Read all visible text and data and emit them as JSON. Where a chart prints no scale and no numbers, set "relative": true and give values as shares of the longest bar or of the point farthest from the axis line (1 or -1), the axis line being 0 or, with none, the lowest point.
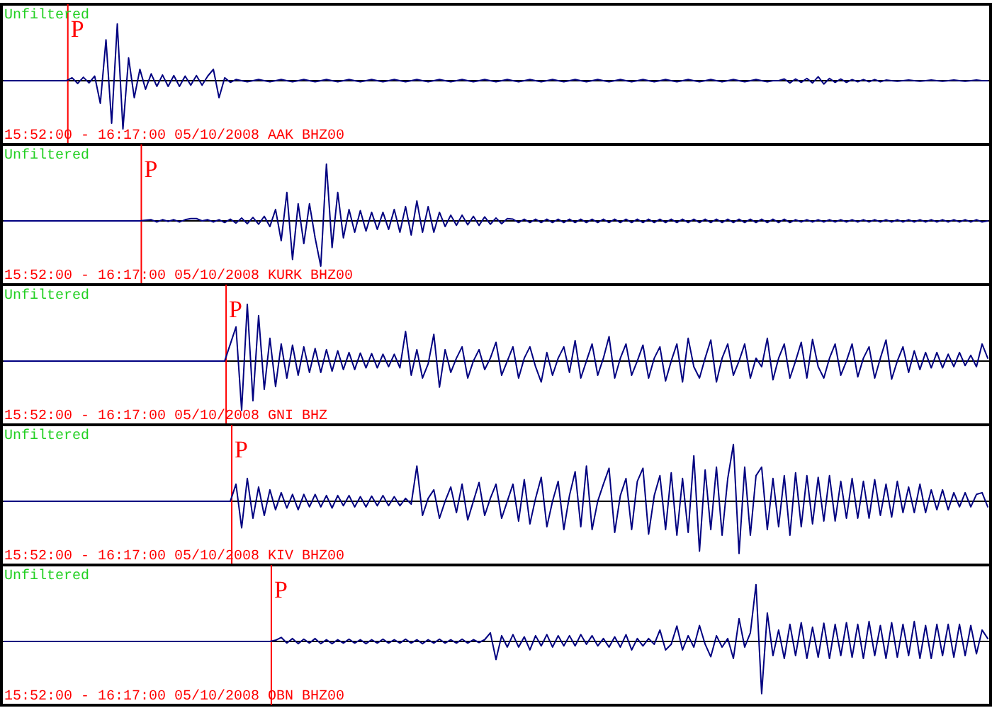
{
  "chart_data": [
    {
      "type": "line",
      "title": "Unfiltered",
      "annotations": [
        {
          "text": "P"
        },
        "15:52:00 - 16:17:00 05/10/2008 AAK BHZ00"
      ],
      "relative": true,
      "color": "#000080",
      "categories": [
        null,
        null,
        null,
        null,
        null,
        null,
        null,
        null,
        null,
        null,
        null,
        null,
        null,
        null,
        null,
        null,
        null,
        null,
        null,
        null,
        null,
        null,
        null,
        null,
        null,
        null,
        null,
        null,
        null,
        null,
        null,
        null,
        null,
        null,
        null,
        null,
        null,
        null,
        null,
        null,
        null,
        null,
        null,
        null,
        null,
        null,
        null,
        null,
        null,
        null,
        null,
        null,
        null,
        null,
        null,
        null,
        null,
        null,
        null,
        null,
        null,
        null,
        null,
        null,
        null,
        null,
        null,
        null,
        null,
        null,
        null,
        null,
        null,
        null,
        null,
        null,
        null,
        null,
        null,
        null,
        null,
        null,
        null,
        null,
        null,
        null,
        null,
        null,
        null,
        null,
        null,
        null,
        null,
        null,
        null,
        null,
        null,
        null,
        null,
        null,
        null,
        null,
        null,
        null,
        null,
        null,
        null,
        null,
        null,
        null,
        null,
        null,
        null,
        null,
        null,
        null,
        null,
        null,
        null,
        null,
        null,
        null,
        null,
        null,
        null,
        null,
        null,
        null,
        null,
        null,
        null,
        null,
        null,
        null,
        null,
        null,
        null,
        null,
        null,
        null,
        null,
        null,
        null,
        null,
        null,
        null,
        null,
        null,
        null,
        null,
        null,
        null,
        null,
        null,
        null,
        null,
        null,
        null,
        null,
        null,
        null,
        null,
        null,
        null,
        null,
        null,
        null,
        null,
        null,
        null,
        null,
        null,
        null,
        null,
        null
      ],
      "values": [
        0,
        0,
        0,
        0,
        0,
        0,
        0,
        0,
        0,
        0,
        0,
        0,
        0.05,
        -0.05,
        0.06,
        -0.04,
        0.08,
        -0.4,
        0.72,
        -0.75,
        1,
        -0.85,
        0.4,
        -0.3,
        0.2,
        -0.15,
        0.12,
        -0.1,
        0.1,
        -0.1,
        0.09,
        -0.1,
        0.08,
        -0.08,
        0.09,
        -0.08,
        0.08,
        0.2,
        -0.3,
        0.05,
        -0.03,
        0.02,
        0,
        -0.02,
        0,
        0.02,
        0,
        -0.02,
        0,
        0.02,
        0,
        -0.02,
        0,
        0.02,
        0,
        -0.02,
        0,
        0.02,
        0,
        -0.02,
        0,
        0.02,
        0,
        -0.02,
        0,
        0.02,
        0,
        -0.02,
        0,
        0.02,
        0,
        -0.02,
        0,
        0.02,
        0,
        -0.02,
        0,
        0.02,
        0,
        -0.02,
        0,
        0.02,
        0,
        -0.02,
        0,
        0.02,
        0,
        -0.02,
        0,
        0.02,
        0,
        -0.02,
        0,
        0.02,
        0,
        -0.02,
        0,
        0.02,
        0,
        -0.02,
        0,
        0.02,
        0,
        -0.02,
        0,
        0.02,
        0,
        -0.02,
        0,
        0.02,
        0,
        -0.02,
        0,
        0.02,
        0,
        -0.02,
        0,
        0.02,
        0,
        -0.02,
        0,
        0.02,
        0,
        -0.02,
        0,
        0.02,
        0,
        -0.02,
        0,
        0.02,
        0,
        -0.02,
        0,
        0.02,
        0,
        -0.02,
        0,
        0,
        0.03,
        -0.04,
        0.03,
        -0.03,
        0.04,
        -0.04,
        0.07,
        -0.06,
        0.04,
        -0.03,
        0.03,
        -0.03,
        0.02,
        -0.02,
        0.02,
        -0.02,
        0.02,
        -0.02,
        0.01,
        0,
        -0.01,
        0,
        0.01,
        0,
        -0.01,
        0,
        0.01,
        0,
        -0.01,
        0,
        0.01,
        0,
        -0.01,
        0,
        0.01,
        0,
        0
      ]
    },
    {
      "type": "line",
      "title": "Unfiltered",
      "annotations": [
        {
          "text": "P"
        },
        "15:52:00 - 16:17:00 05/10/2008 KURK BHZ00"
      ],
      "relative": true,
      "color": "#000080",
      "categories": [
        null,
        null,
        null,
        null,
        null,
        null,
        null,
        null,
        null,
        null,
        null,
        null,
        null,
        null,
        null,
        null,
        null,
        null,
        null,
        null,
        null,
        null,
        null,
        null,
        null,
        null,
        null,
        null,
        null,
        null,
        null,
        null,
        null,
        null,
        null,
        null,
        null,
        null,
        null,
        null,
        null,
        null,
        null,
        null,
        null,
        null,
        null,
        null,
        null,
        null,
        null,
        null,
        null,
        null,
        null,
        null,
        null,
        null,
        null,
        null,
        null,
        null,
        null,
        null,
        null,
        null,
        null,
        null,
        null,
        null,
        null,
        null,
        null,
        null,
        null,
        null,
        null,
        null,
        null,
        null,
        null,
        null,
        null,
        null,
        null,
        null,
        null,
        null,
        null,
        null,
        null,
        null,
        null,
        null,
        null,
        null,
        null,
        null,
        null,
        null,
        null,
        null,
        null,
        null,
        null,
        null,
        null,
        null,
        null,
        null,
        null,
        null,
        null,
        null,
        null,
        null,
        null,
        null,
        null,
        null,
        null,
        null,
        null,
        null,
        null,
        null,
        null,
        null,
        null,
        null,
        null,
        null,
        null,
        null,
        null,
        null,
        null,
        null,
        null,
        null,
        null,
        null,
        null,
        null,
        null,
        null,
        null,
        null,
        null,
        null,
        null,
        null,
        null,
        null,
        null,
        null,
        null,
        null,
        null,
        null,
        null,
        null,
        null,
        null,
        null,
        null,
        null,
        null,
        null,
        null,
        null,
        null,
        null,
        null,
        null
      ],
      "values": [
        0,
        0,
        0,
        0,
        0,
        0,
        0,
        0,
        0,
        0,
        0,
        0,
        0,
        0,
        0,
        0,
        0,
        0,
        0,
        0,
        0,
        0,
        0,
        0,
        0,
        0.01,
        0.02,
        -0.02,
        0.02,
        -0.01,
        0.02,
        -0.02,
        0.02,
        0.04,
        0.04,
        0,
        0.02,
        -0.02,
        0.02,
        -0.03,
        0.03,
        -0.04,
        0.05,
        -0.05,
        0.06,
        -0.06,
        0.08,
        -0.1,
        0.2,
        -0.35,
        0.5,
        -0.68,
        0.3,
        -0.4,
        0.3,
        -0.3,
        -0.8,
        1,
        -0.47,
        0.5,
        -0.3,
        0.2,
        -0.2,
        0.18,
        -0.18,
        0.15,
        -0.15,
        0.15,
        -0.15,
        0.2,
        -0.2,
        0.25,
        -0.25,
        0.35,
        -0.2,
        0.25,
        -0.2,
        0.15,
        -0.1,
        0.1,
        -0.08,
        0.1,
        -0.07,
        0.08,
        -0.08,
        0.07,
        -0.06,
        0.05,
        -0.05,
        0.04,
        0.03,
        -0.03,
        0.03,
        -0.03,
        0.03,
        -0.03,
        0.03,
        -0.03,
        0.03,
        -0.03,
        0.03,
        -0.03,
        0.03,
        -0.03,
        0.03,
        -0.03,
        0.03,
        -0.03,
        0.03,
        -0.03,
        0.03,
        -0.03,
        0.03,
        -0.03,
        0.03,
        -0.03,
        0.03,
        -0.03,
        0.03,
        -0.03,
        0.03,
        -0.03,
        0.03,
        -0.03,
        0.03,
        -0.03,
        0.03,
        -0.03,
        0.03,
        -0.03,
        0.03,
        -0.03,
        0.03,
        -0.03,
        0.03,
        -0.03,
        0.03,
        -0.03,
        0.03,
        -0.03,
        0.02,
        -0.02,
        0.02,
        -0.02,
        0.02,
        -0.02,
        0.02,
        -0.02,
        0.02,
        -0.02,
        0.02,
        -0.02,
        0.02,
        -0.02,
        0.02,
        -0.02,
        0.02,
        -0.02,
        0.02,
        -0.02,
        0.02,
        -0.02,
        0.02,
        -0.02,
        0.02,
        -0.02,
        0.02,
        -0.02,
        0.02,
        -0.02,
        0.02,
        -0.02,
        0.02,
        -0.02,
        0
      ]
    },
    {
      "type": "line",
      "title": "Unfiltered",
      "annotations": [
        {
          "text": "P"
        },
        "15:52:00 - 16:17:00 05/10/2008 GNI BHZ"
      ],
      "relative": true,
      "color": "#000080",
      "categories": [
        null,
        null,
        null,
        null,
        null,
        null,
        null,
        null,
        null,
        null,
        null,
        null,
        null,
        null,
        null,
        null,
        null,
        null,
        null,
        null,
        null,
        null,
        null,
        null,
        null,
        null,
        null,
        null,
        null,
        null,
        null,
        null,
        null,
        null,
        null,
        null,
        null,
        null,
        null,
        null,
        null,
        null,
        null,
        null,
        null,
        null,
        null,
        null,
        null,
        null,
        null,
        null,
        null,
        null,
        null,
        null,
        null,
        null,
        null,
        null,
        null,
        null,
        null,
        null,
        null,
        null,
        null,
        null,
        null,
        null,
        null,
        null,
        null,
        null,
        null,
        null,
        null,
        null,
        null,
        null,
        null,
        null,
        null,
        null,
        null,
        null,
        null,
        null,
        null,
        null,
        null,
        null,
        null,
        null,
        null,
        null,
        null,
        null,
        null,
        null,
        null,
        null,
        null,
        null,
        null,
        null,
        null,
        null,
        null,
        null,
        null,
        null,
        null,
        null,
        null,
        null,
        null,
        null,
        null,
        null,
        null,
        null,
        null,
        null,
        null,
        null,
        null,
        null,
        null,
        null,
        null,
        null,
        null,
        null,
        null,
        null,
        null,
        null,
        null,
        null,
        null,
        null,
        null,
        null,
        null,
        null,
        null,
        null,
        null,
        null,
        null,
        null,
        null,
        null,
        null,
        null,
        null,
        null,
        null,
        null,
        null,
        null,
        null,
        null,
        null,
        null,
        null,
        null,
        null,
        null,
        null,
        null,
        null,
        null,
        null
      ],
      "values": [
        0,
        0,
        0,
        0,
        0,
        0,
        0,
        0,
        0,
        0,
        0,
        0,
        0,
        0,
        0,
        0,
        0,
        0,
        0,
        0,
        0,
        0,
        0,
        0,
        0,
        0,
        0,
        0,
        0,
        0,
        0,
        0,
        0,
        0,
        0,
        0,
        0,
        0,
        0,
        0,
        0.3,
        0.6,
        -0.87,
        1,
        -0.7,
        0.8,
        -0.5,
        0.4,
        -0.45,
        0.3,
        -0.3,
        0.28,
        -0.25,
        0.25,
        -0.2,
        0.22,
        -0.2,
        0.2,
        -0.18,
        0.18,
        -0.15,
        0.15,
        -0.15,
        0.14,
        -0.12,
        0.13,
        -0.12,
        0.12,
        -0.1,
        0.12,
        -0.12,
        0.52,
        -0.25,
        0.2,
        -0.3,
        -0.05,
        0.47,
        -0.46,
        0.2,
        -0.2,
        0.05,
        0.25,
        -0.3,
        0,
        0.2,
        -0.15,
        0.05,
        0.33,
        -0.25,
        0,
        0.25,
        -0.3,
        0.05,
        0.25,
        -0.1,
        -0.37,
        0.15,
        -0.25,
        0.05,
        0.25,
        -0.2,
        0.36,
        -0.3,
        0,
        0.3,
        -0.25,
        0.05,
        0.43,
        -0.3,
        0.05,
        0.3,
        -0.25,
        0,
        0.28,
        -0.3,
        0.05,
        0.25,
        -0.35,
        0,
        0.3,
        -0.37,
        0.4,
        -0.1,
        -0.3,
        0.05,
        0.37,
        -0.37,
        0.05,
        0.3,
        -0.25,
        0,
        0.3,
        -0.3,
        0.05,
        -0.1,
        0.4,
        -0.33,
        0.05,
        0.3,
        -0.3,
        0,
        0.33,
        -0.3,
        0.38,
        -0.1,
        -0.3,
        0.05,
        0.3,
        -0.25,
        0,
        0.3,
        -0.28,
        0.05,
        0.25,
        -0.3,
        0.05,
        0.37,
        -0.32,
        0,
        0.25,
        -0.2,
        0.18,
        -0.15,
        0.15,
        -0.12,
        0.15,
        -0.12,
        0.12,
        -0.1,
        0.15,
        -0.08,
        0.1,
        -0.1,
        0.3,
        0.05
      ]
    },
    {
      "type": "line",
      "title": "Unfiltered",
      "annotations": [
        {
          "text": "P"
        },
        "15:52:00 - 16:17:00 05/10/2008 KIV BHZ00"
      ],
      "relative": true,
      "color": "#000080",
      "categories": [
        null,
        null,
        null,
        null,
        null,
        null,
        null,
        null,
        null,
        null,
        null,
        null,
        null,
        null,
        null,
        null,
        null,
        null,
        null,
        null,
        null,
        null,
        null,
        null,
        null,
        null,
        null,
        null,
        null,
        null,
        null,
        null,
        null,
        null,
        null,
        null,
        null,
        null,
        null,
        null,
        null,
        null,
        null,
        null,
        null,
        null,
        null,
        null,
        null,
        null,
        null,
        null,
        null,
        null,
        null,
        null,
        null,
        null,
        null,
        null,
        null,
        null,
        null,
        null,
        null,
        null,
        null,
        null,
        null,
        null,
        null,
        null,
        null,
        null,
        null,
        null,
        null,
        null,
        null,
        null,
        null,
        null,
        null,
        null,
        null,
        null,
        null,
        null,
        null,
        null,
        null,
        null,
        null,
        null,
        null,
        null,
        null,
        null,
        null,
        null,
        null,
        null,
        null,
        null,
        null,
        null,
        null,
        null,
        null,
        null,
        null,
        null,
        null,
        null,
        null,
        null,
        null,
        null,
        null,
        null,
        null,
        null,
        null,
        null,
        null,
        null,
        null,
        null,
        null,
        null,
        null,
        null,
        null,
        null,
        null,
        null,
        null,
        null,
        null,
        null,
        null,
        null,
        null,
        null,
        null,
        null,
        null,
        null,
        null,
        null,
        null,
        null,
        null,
        null,
        null,
        null,
        null,
        null,
        null,
        null,
        null,
        null,
        null,
        null,
        null,
        null,
        null,
        null,
        null,
        null,
        null,
        null,
        null,
        null,
        null
      ],
      "values": [
        0,
        0,
        0,
        0,
        0,
        0,
        0,
        0,
        0,
        0,
        0,
        0,
        0,
        0,
        0,
        0,
        0,
        0,
        0,
        0,
        0,
        0,
        0,
        0,
        0,
        0,
        0,
        0,
        0,
        0,
        0,
        0,
        0,
        0,
        0,
        0,
        0,
        0,
        0,
        0,
        0,
        0.3,
        -0.47,
        0.4,
        -0.3,
        0.25,
        -0.25,
        0.2,
        -0.15,
        0.15,
        -0.12,
        0.12,
        -0.15,
        0.12,
        -0.1,
        0.12,
        -0.1,
        0.1,
        -0.12,
        0.1,
        -0.08,
        0.1,
        -0.1,
        0.08,
        -0.1,
        0.09,
        -0.08,
        0.1,
        -0.08,
        0.08,
        -0.08,
        0.05,
        -0.05,
        0.62,
        -0.25,
        0.05,
        0.2,
        -0.3,
        0,
        0.25,
        -0.2,
        0.3,
        -0.33,
        0,
        0.33,
        -0.25,
        0.05,
        0.3,
        -0.3,
        0,
        0.3,
        -0.35,
        0.38,
        -0.4,
        0.05,
        0.42,
        -0.45,
        0,
        0.35,
        -0.5,
        0.1,
        0.52,
        -0.45,
        0.62,
        -0.5,
        0,
        0.3,
        0.58,
        -0.55,
        0.1,
        0.4,
        -0.5,
        0.35,
        0.58,
        -0.58,
        0.1,
        0.45,
        -0.5,
        0.5,
        -0.6,
        0.4,
        -0.55,
        0.8,
        -0.88,
        0.55,
        -0.5,
        0.6,
        -0.6,
        0.4,
        1,
        -0.92,
        0.6,
        -0.6,
        0.45,
        0.6,
        -0.5,
        0.4,
        -0.45,
        0.45,
        -0.6,
        0.5,
        -0.45,
        0.45,
        -0.4,
        0.42,
        -0.35,
        0.45,
        -0.35,
        0.35,
        -0.3,
        0.4,
        -0.3,
        0.35,
        -0.3,
        0.38,
        -0.25,
        0.3,
        -0.28,
        0.35,
        -0.2,
        0.25,
        -0.2,
        0.3,
        -0.2,
        0.2,
        -0.15,
        0.2,
        -0.15,
        0.15,
        -0.1,
        0.15,
        -0.1,
        0.12,
        0.15,
        -0.1
      ]
    },
    {
      "type": "line",
      "title": "Unfiltered",
      "annotations": [
        {
          "text": "P"
        },
        "15:52:00 - 16:17:00 05/10/2008 OBN BHZ00"
      ],
      "relative": true,
      "color": "#000080",
      "categories": [
        null,
        null,
        null,
        null,
        null,
        null,
        null,
        null,
        null,
        null,
        null,
        null,
        null,
        null,
        null,
        null,
        null,
        null,
        null,
        null,
        null,
        null,
        null,
        null,
        null,
        null,
        null,
        null,
        null,
        null,
        null,
        null,
        null,
        null,
        null,
        null,
        null,
        null,
        null,
        null,
        null,
        null,
        null,
        null,
        null,
        null,
        null,
        null,
        null,
        null,
        null,
        null,
        null,
        null,
        null,
        null,
        null,
        null,
        null,
        null,
        null,
        null,
        null,
        null,
        null,
        null,
        null,
        null,
        null,
        null,
        null,
        null,
        null,
        null,
        null,
        null,
        null,
        null,
        null,
        null,
        null,
        null,
        null,
        null,
        null,
        null,
        null,
        null,
        null,
        null,
        null,
        null,
        null,
        null,
        null,
        null,
        null,
        null,
        null,
        null,
        null,
        null,
        null,
        null,
        null,
        null,
        null,
        null,
        null,
        null,
        null,
        null,
        null,
        null,
        null,
        null,
        null,
        null,
        null,
        null,
        null,
        null,
        null,
        null,
        null,
        null,
        null,
        null,
        null,
        null,
        null,
        null,
        null,
        null,
        null,
        null,
        null,
        null,
        null,
        null,
        null,
        null,
        null,
        null,
        null,
        null,
        null,
        null,
        null,
        null,
        null,
        null,
        null,
        null,
        null,
        null,
        null,
        null,
        null,
        null,
        null,
        null,
        null,
        null,
        null,
        null,
        null,
        null,
        null,
        null,
        null,
        null,
        null,
        null,
        null
      ],
      "values": [
        0,
        0,
        0,
        0,
        0,
        0,
        0,
        0,
        0,
        0,
        0,
        0,
        0,
        0,
        0,
        0,
        0,
        0,
        0,
        0,
        0,
        0,
        0,
        0,
        0,
        0,
        0,
        0,
        0,
        0,
        0,
        0,
        0,
        0,
        0,
        0,
        0,
        0,
        0,
        0,
        0,
        0,
        0,
        0,
        0,
        0,
        0,
        0,
        0.02,
        0.07,
        -0.03,
        0.05,
        -0.04,
        0.04,
        -0.03,
        0.05,
        -0.04,
        0.03,
        -0.04,
        0.03,
        -0.03,
        0.04,
        -0.03,
        0.03,
        -0.04,
        0.03,
        -0.03,
        0.04,
        -0.03,
        0.03,
        -0.03,
        0.04,
        -0.03,
        0.03,
        -0.04,
        0.03,
        -0.03,
        0.04,
        -0.03,
        0.03,
        -0.03,
        0.04,
        -0.03,
        0.03,
        -0.02,
        0.03,
        0.15,
        -0.32,
        0.1,
        -0.1,
        0.12,
        -0.1,
        0.08,
        -0.15,
        0.1,
        -0.08,
        0.12,
        -0.1,
        0.1,
        -0.08,
        0.1,
        -0.08,
        0.12,
        -0.05,
        0.1,
        -0.08,
        0.05,
        -0.1,
        0.08,
        -0.1,
        0.12,
        -0.15,
        0.05,
        -0.08,
        0.05,
        -0.05,
        0.2,
        -0.15,
        -0.05,
        0.27,
        -0.15,
        0.1,
        -0.1,
        0.28,
        -0.05,
        -0.27,
        0.1,
        -0.1,
        0.05,
        -0.3,
        0.4,
        -0.1,
        0.15,
        1,
        -0.92,
        0.5,
        -0.25,
        0.2,
        -0.3,
        0.3,
        -0.25,
        0.33,
        -0.3,
        0.25,
        -0.28,
        0.32,
        -0.3,
        0.3,
        -0.25,
        0.33,
        -0.28,
        0.3,
        -0.3,
        0.35,
        -0.25,
        0.28,
        -0.3,
        0.33,
        -0.28,
        0.3,
        -0.25,
        0.35,
        -0.3,
        0.28,
        -0.3,
        0.3,
        -0.25,
        0.3,
        -0.28,
        0.3,
        -0.25,
        0.28,
        -0.22,
        0.2,
        0.05
      ]
    }
  ]
}
